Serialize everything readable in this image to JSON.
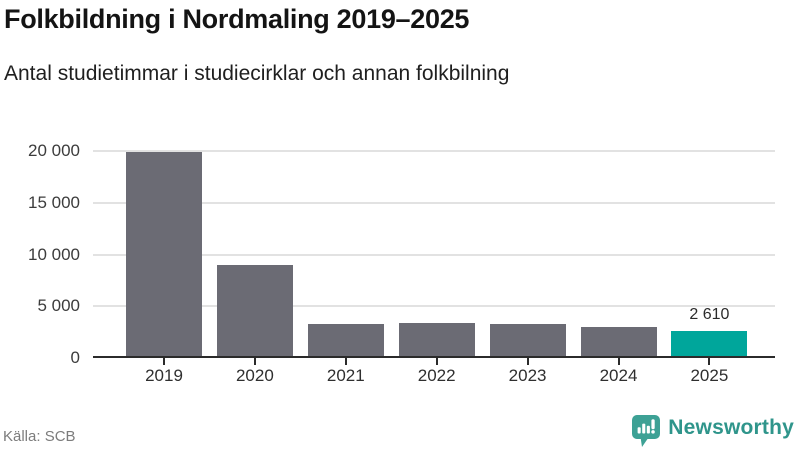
{
  "title": "Folkbildning i Nordmaling 2019–2025",
  "subtitle": "Antal studietimmar i studiecirklar och annan folkbilning",
  "source": "Källa: SCB",
  "brand": {
    "name": "Newsworthy",
    "text_color": "#2f958b",
    "icon_color": "#3da195"
  },
  "chart_data": {
    "type": "bar",
    "title": "Folkbildning i Nordmaling 2019–2025",
    "subtitle": "Antal studietimmar i studiecirklar och annan folkbilning",
    "categories": [
      "2019",
      "2020",
      "2021",
      "2022",
      "2023",
      "2024",
      "2025"
    ],
    "values": [
      19950,
      8950,
      3250,
      3400,
      3300,
      2950,
      2610
    ],
    "ylim": [
      0,
      20000
    ],
    "yticks": [
      0,
      5000,
      10000,
      15000,
      20000
    ],
    "ytick_labels": [
      "0",
      "5 000",
      "10 000",
      "15 000",
      "20 000"
    ],
    "grid": true,
    "legend": "none",
    "colors": {
      "bar": "#6b6b74",
      "highlight": "#00a69b",
      "gridline": "#e2e2e2",
      "axis": "#2b2b2b"
    },
    "highlight": {
      "index": 6,
      "label": "2 610"
    }
  }
}
